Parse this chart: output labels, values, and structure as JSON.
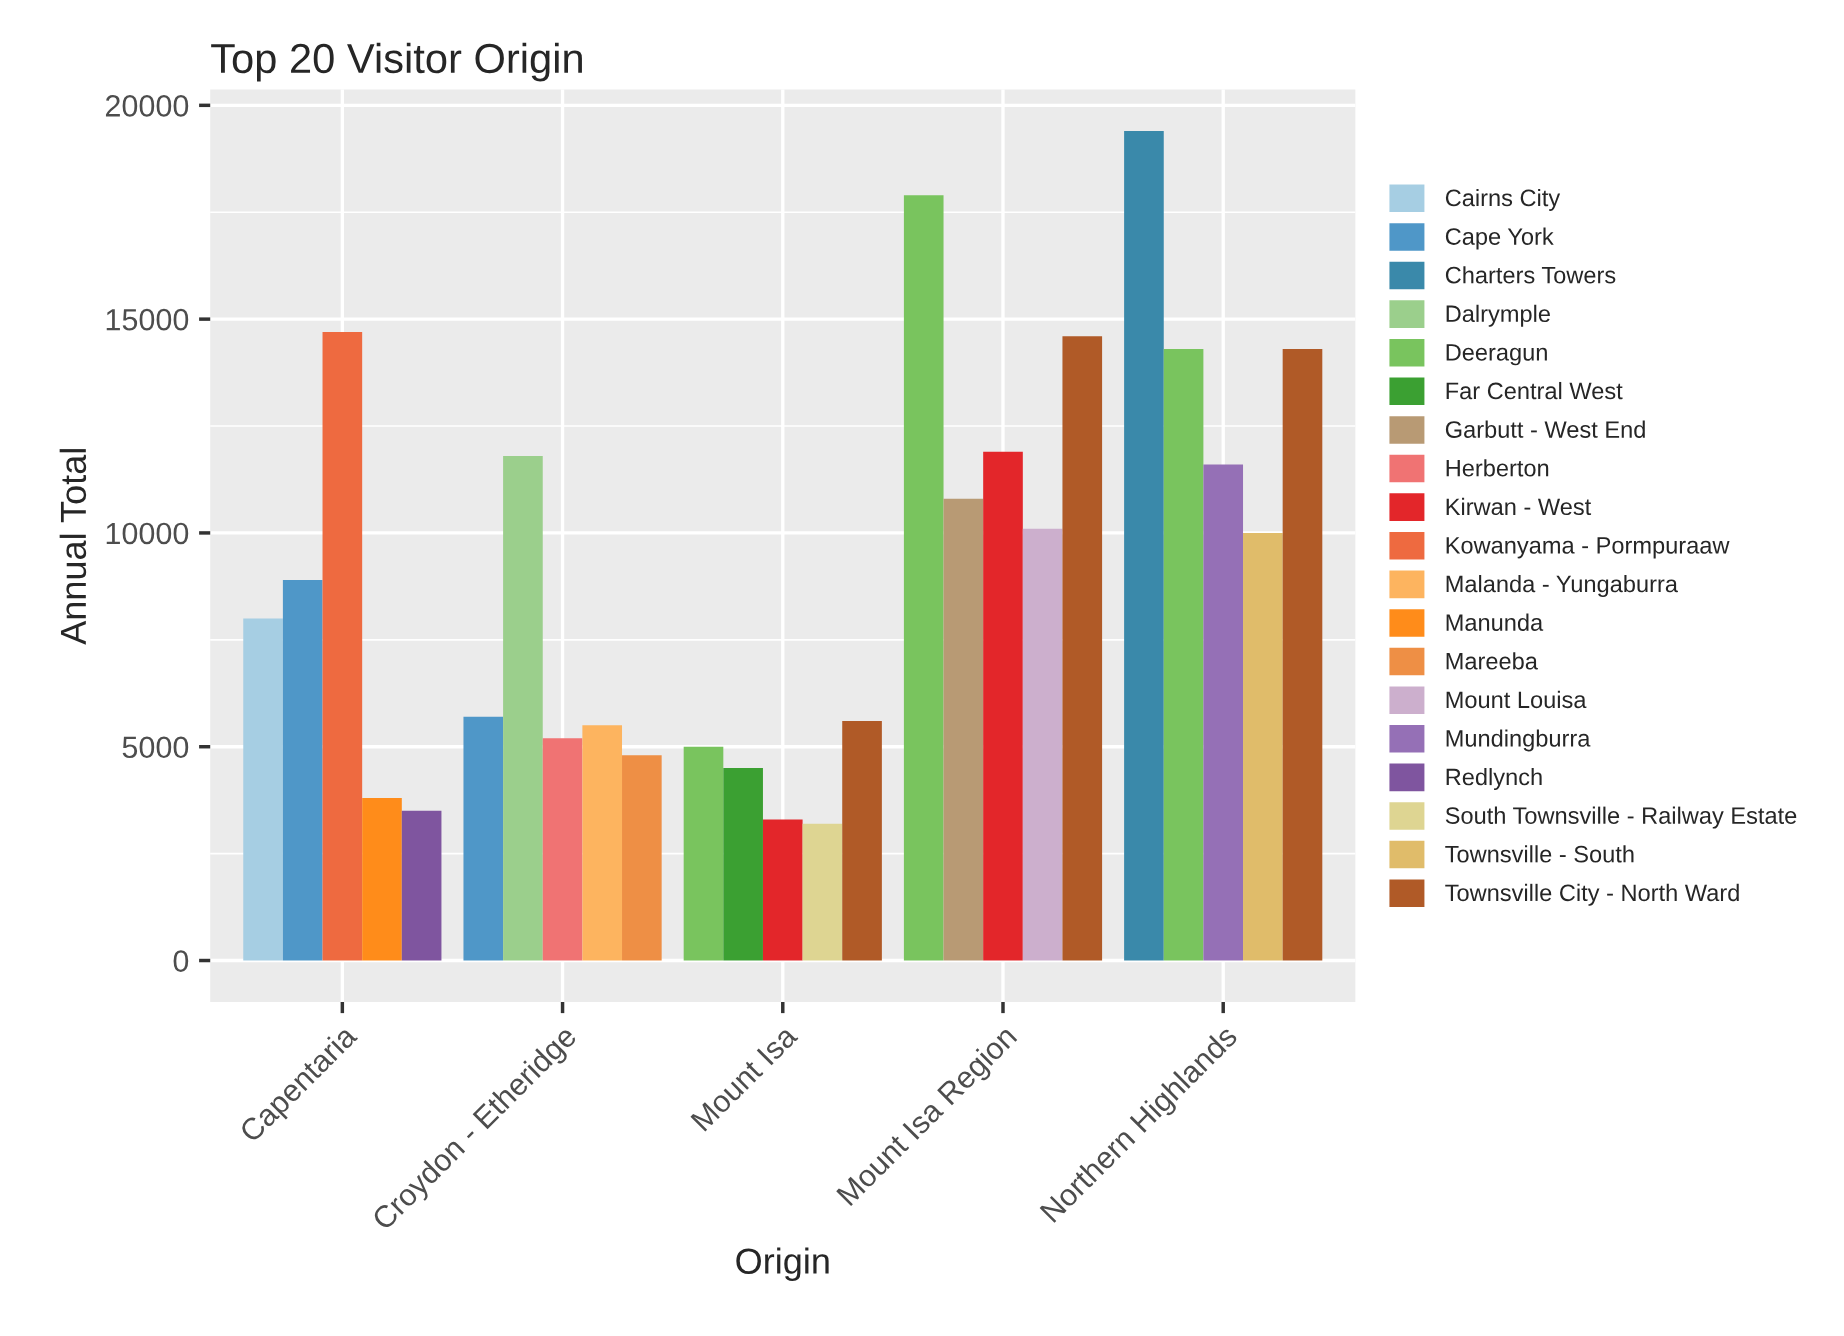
{
  "chart_data": {
    "type": "bar",
    "title": "Top 20 Visitor Origin",
    "xlabel": "Origin",
    "ylabel": "Annual Total",
    "categories": [
      "Capentaria",
      "Croydon - Etheridge",
      "Mount Isa",
      "Mount Isa Region",
      "Northern Highlands"
    ],
    "series": [
      {
        "name": "Cairns City",
        "color": "#a6cee3",
        "values": [
          8000,
          null,
          null,
          null,
          null
        ]
      },
      {
        "name": "Cape York",
        "color": "#4f97c8",
        "values": [
          8900,
          5700,
          null,
          null,
          null
        ]
      },
      {
        "name": "Charters Towers",
        "color": "#3a89aa",
        "values": [
          null,
          null,
          null,
          null,
          19400
        ]
      },
      {
        "name": "Dalrymple",
        "color": "#9bcf8c",
        "values": [
          null,
          11800,
          null,
          null,
          null
        ]
      },
      {
        "name": "Deeragun",
        "color": "#79c45e",
        "values": [
          null,
          null,
          5000,
          17900,
          14300
        ]
      },
      {
        "name": "Far Central West",
        "color": "#3ba032",
        "values": [
          null,
          null,
          4500,
          null,
          null
        ]
      },
      {
        "name": "Garbutt - West End",
        "color": "#b89a74",
        "values": [
          null,
          null,
          null,
          10800,
          null
        ]
      },
      {
        "name": "Herberton",
        "color": "#f07373",
        "values": [
          null,
          5200,
          null,
          null,
          null
        ]
      },
      {
        "name": "Kirwan - West",
        "color": "#e3262a",
        "values": [
          null,
          null,
          3300,
          11900,
          null
        ]
      },
      {
        "name": "Kowanyama - Pormpuraaw",
        "color": "#ee6a40",
        "values": [
          14700,
          null,
          null,
          null,
          null
        ]
      },
      {
        "name": "Malanda - Yungaburra",
        "color": "#fdb45f",
        "values": [
          null,
          5500,
          null,
          null,
          null
        ]
      },
      {
        "name": "Manunda",
        "color": "#ff8c1a",
        "values": [
          3800,
          null,
          null,
          null,
          null
        ]
      },
      {
        "name": "Mareeba",
        "color": "#ee8f45",
        "values": [
          null,
          4800,
          null,
          null,
          null
        ]
      },
      {
        "name": "Mount Louisa",
        "color": "#ccafcd",
        "values": [
          null,
          null,
          null,
          10100,
          null
        ]
      },
      {
        "name": "Mundingburra",
        "color": "#9570b6",
        "values": [
          null,
          null,
          null,
          null,
          11600
        ]
      },
      {
        "name": "Redlynch",
        "color": "#7f559f",
        "values": [
          3500,
          null,
          null,
          null,
          null
        ]
      },
      {
        "name": "South Townsville - Railway Estate",
        "color": "#ded592",
        "values": [
          null,
          null,
          3200,
          null,
          null
        ]
      },
      {
        "name": "Townsville - South",
        "color": "#e0bc6a",
        "values": [
          null,
          null,
          null,
          null,
          10000
        ]
      },
      {
        "name": "Townsville City - North Ward",
        "color": "#b05a27",
        "values": [
          null,
          null,
          5600,
          14600,
          14300
        ]
      }
    ],
    "ylim": [
      -970,
      20370
    ],
    "yticks": [
      0,
      5000,
      10000,
      15000,
      20000
    ],
    "grid": true,
    "legend": "right"
  }
}
